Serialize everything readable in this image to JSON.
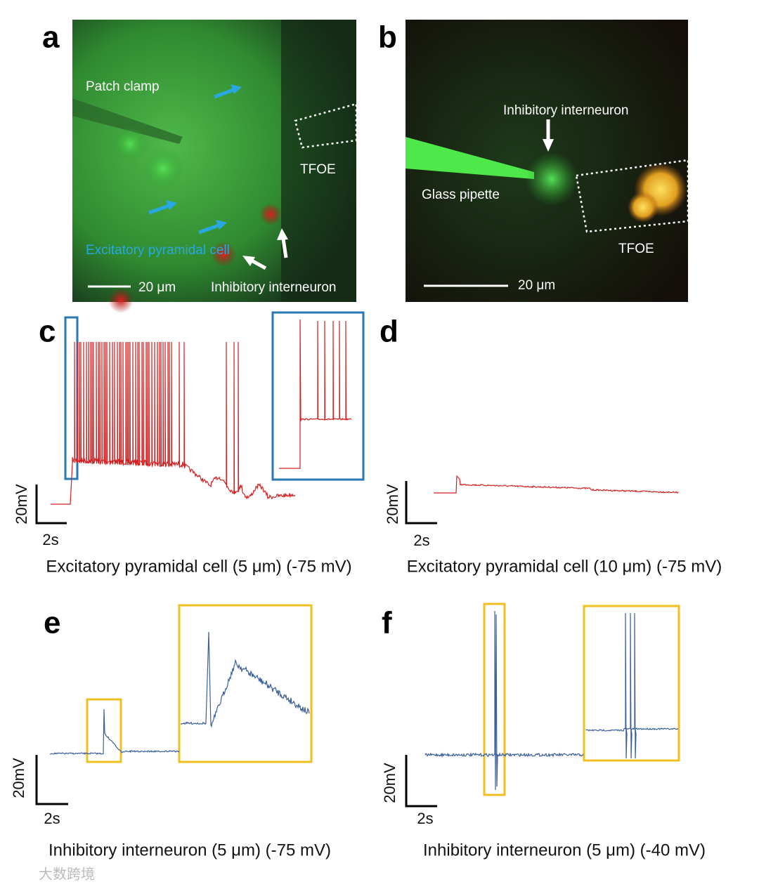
{
  "panels": [
    {
      "label": "a",
      "annotations": [
        "Patch clamp",
        "TFOE",
        "Excitatory pyramidal cell",
        "Inhibitory interneuron"
      ],
      "scale_bar": "20 μm"
    },
    {
      "label": "b",
      "annotations": [
        "Inhibitory interneuron",
        "Glass pipette",
        "TFOE"
      ],
      "scale_bar": "20 μm"
    },
    {
      "label": "c",
      "scale_y": "20mV",
      "scale_x": "2s",
      "caption": "Excitatory pyramidal cell (5 μm) (-75 mV)"
    },
    {
      "label": "d",
      "scale_y": "20mV",
      "scale_x": "2s",
      "caption": "Excitatory pyramidal cell (10 μm) (-75 mV)"
    },
    {
      "label": "e",
      "scale_y": "20mV",
      "scale_x": "2s",
      "caption": "Inhibitory interneuron (5 μm) (-75 mV)"
    },
    {
      "label": "f",
      "scale_y": "20mV",
      "scale_x": "2s",
      "caption": "Inhibitory interneuron (5 μm) (-40 mV)"
    }
  ],
  "watermark": "大数跨境"
}
